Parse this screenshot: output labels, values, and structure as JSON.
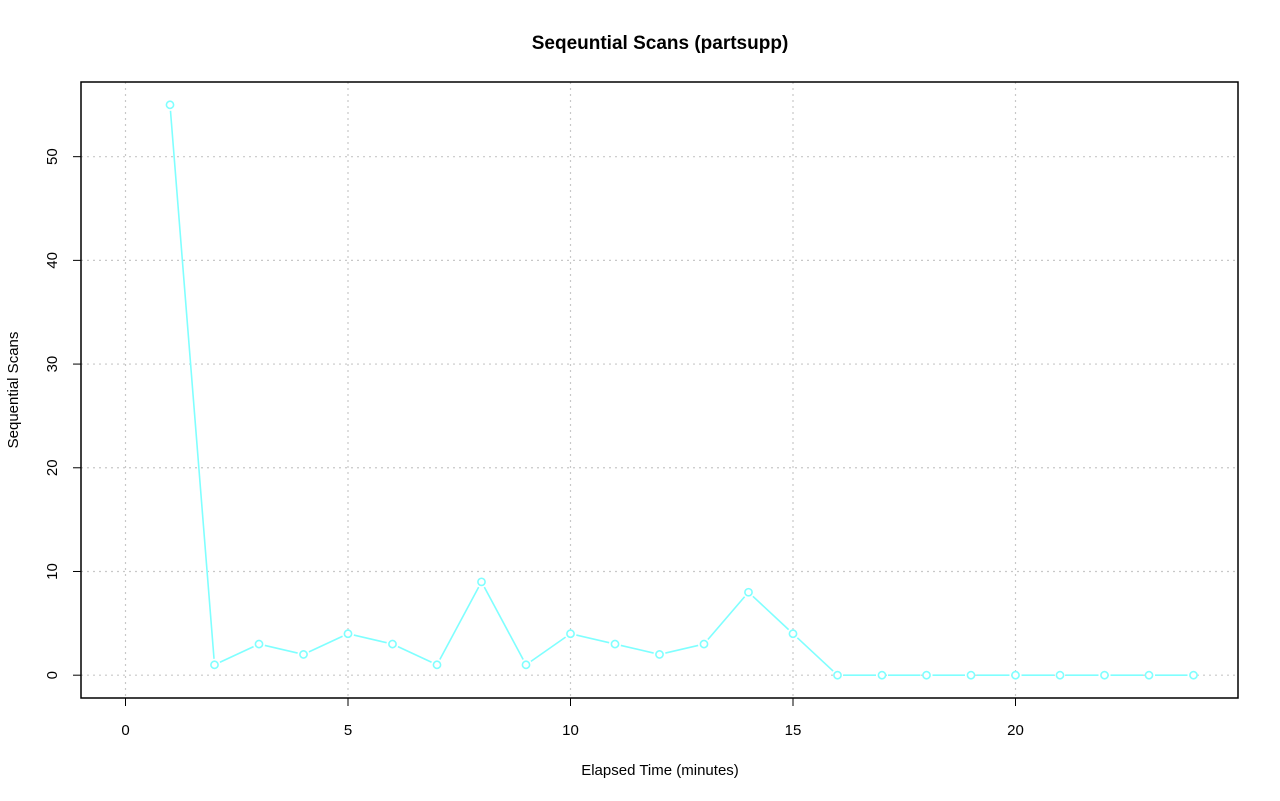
{
  "chart_data": {
    "type": "line",
    "title": "Seqeuntial Scans (partsupp)",
    "xlabel": "Elapsed Time (minutes)",
    "ylabel": "Sequential Scans",
    "xlim": [
      -1,
      25
    ],
    "ylim": [
      -2.2,
      57.2
    ],
    "x_ticks": [
      0,
      5,
      10,
      15,
      20
    ],
    "y_ticks": [
      0,
      10,
      20,
      30,
      40,
      50
    ],
    "grid": true,
    "legend": "none",
    "series": [
      {
        "color": "#7fffff",
        "x": [
          1,
          2,
          3,
          4,
          5,
          6,
          7,
          8,
          9,
          10,
          11,
          12,
          13,
          14,
          15,
          16,
          17,
          18,
          19,
          20,
          21,
          22,
          23,
          24
        ],
        "y": [
          55,
          1,
          3,
          2,
          4,
          3,
          1,
          9,
          1,
          4,
          3,
          2,
          3,
          8,
          4,
          0,
          0,
          0,
          0,
          0,
          0,
          0,
          0,
          0
        ]
      }
    ]
  }
}
